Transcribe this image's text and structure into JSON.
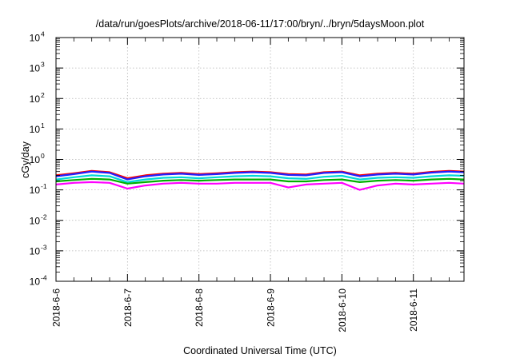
{
  "chart_data": {
    "type": "line",
    "title": "/data/run/goesPlots/archive/2018-06-11/17:00/bryn/../bryn/5daysMoon.plot",
    "xlabel": "Coordinated Universal Time (UTC)",
    "ylabel": "cGy/day",
    "yscale": "log",
    "ylim": [
      0.0001,
      10000
    ],
    "xlim": [
      "2018-06-06",
      "2018-06-11T17:00"
    ],
    "grid": true,
    "legend": "none",
    "y_ticks": [
      {
        "value": 0.0001,
        "base": "10",
        "exp": "-4"
      },
      {
        "value": 0.001,
        "base": "10",
        "exp": "-3"
      },
      {
        "value": 0.01,
        "base": "10",
        "exp": "-2"
      },
      {
        "value": 0.1,
        "base": "10",
        "exp": "-1"
      },
      {
        "value": 1,
        "base": "10",
        "exp": "0"
      },
      {
        "value": 10,
        "base": "10",
        "exp": "1"
      },
      {
        "value": 100,
        "base": "10",
        "exp": "2"
      },
      {
        "value": 1000,
        "base": "10",
        "exp": "3"
      },
      {
        "value": 10000,
        "base": "10",
        "exp": "4"
      }
    ],
    "x_ticks": [
      "2018-6-6",
      "2018-6-7",
      "2018-6-8",
      "2018-6-9",
      "2018-6-10",
      "2018-6-11"
    ],
    "x": [
      "2018-06-06T00:00",
      "2018-06-06T06:00",
      "2018-06-06T12:00",
      "2018-06-06T18:00",
      "2018-06-07T00:00",
      "2018-06-07T06:00",
      "2018-06-07T12:00",
      "2018-06-07T18:00",
      "2018-06-08T00:00",
      "2018-06-08T06:00",
      "2018-06-08T12:00",
      "2018-06-08T18:00",
      "2018-06-09T00:00",
      "2018-06-09T06:00",
      "2018-06-09T12:00",
      "2018-06-09T18:00",
      "2018-06-10T00:00",
      "2018-06-10T06:00",
      "2018-06-10T12:00",
      "2018-06-10T18:00",
      "2018-06-11T00:00",
      "2018-06-11T06:00",
      "2018-06-11T12:00",
      "2018-06-11T17:00"
    ],
    "series": [
      {
        "color": "#ff0000",
        "values": [
          0.3,
          0.35,
          0.42,
          0.38,
          0.24,
          0.3,
          0.34,
          0.36,
          0.33,
          0.35,
          0.38,
          0.4,
          0.38,
          0.33,
          0.32,
          0.38,
          0.4,
          0.3,
          0.34,
          0.36,
          0.34,
          0.39,
          0.42,
          0.4
        ]
      },
      {
        "color": "#2020ff",
        "values": [
          0.28,
          0.33,
          0.4,
          0.36,
          0.22,
          0.28,
          0.32,
          0.34,
          0.31,
          0.33,
          0.36,
          0.38,
          0.36,
          0.31,
          0.3,
          0.36,
          0.38,
          0.28,
          0.32,
          0.34,
          0.32,
          0.37,
          0.4,
          0.38
        ]
      },
      {
        "color": "#00d8d8",
        "values": [
          0.22,
          0.26,
          0.3,
          0.28,
          0.18,
          0.22,
          0.25,
          0.26,
          0.24,
          0.26,
          0.28,
          0.29,
          0.28,
          0.24,
          0.23,
          0.27,
          0.29,
          0.22,
          0.25,
          0.26,
          0.25,
          0.28,
          0.3,
          0.29
        ]
      },
      {
        "color": "#00b000",
        "values": [
          0.19,
          0.21,
          0.23,
          0.22,
          0.16,
          0.18,
          0.2,
          0.21,
          0.2,
          0.21,
          0.22,
          0.22,
          0.22,
          0.19,
          0.19,
          0.21,
          0.22,
          0.18,
          0.2,
          0.21,
          0.2,
          0.22,
          0.23,
          0.22
        ]
      },
      {
        "color": "#ff00ff",
        "values": [
          0.15,
          0.17,
          0.18,
          0.17,
          0.11,
          0.14,
          0.16,
          0.17,
          0.16,
          0.16,
          0.17,
          0.17,
          0.17,
          0.12,
          0.15,
          0.16,
          0.17,
          0.1,
          0.14,
          0.16,
          0.15,
          0.16,
          0.17,
          0.16
        ]
      }
    ]
  }
}
